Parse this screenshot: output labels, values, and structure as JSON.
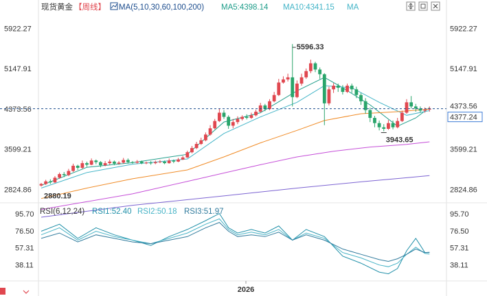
{
  "header": {
    "instrument": "现货黄金",
    "period": "【周线】",
    "ma_params": "MA(5,10,30,60,100,200)",
    "ma5": "MA5:4398.14",
    "ma10": "MA10:4341.15",
    "ma_more": "MA"
  },
  "rsi_header": {
    "params": "RSI(6,12,24)",
    "rsi1": "RSI1:52.40",
    "rsi2": "RSI2:50.18",
    "rsi3": "RSI3:51.97"
  },
  "toolbar": [
    "expand-icon",
    "square-icon",
    "close-icon"
  ],
  "colors": {
    "up": "#e0474f",
    "down": "#2aa56b",
    "ma5": "#1f9d8a",
    "ma10": "#42b4c7",
    "ma30": "#f08a24",
    "ma60": "#c54dd8",
    "ma100": "#7b62d2",
    "rsi1": "#1f8fa8",
    "rsi2": "#46b3c6",
    "rsi3": "#2f7a9c",
    "refline": "#1a4b8c"
  },
  "chart_data": [
    {
      "type": "candlestick",
      "price_ticks": [
        "5922.27",
        "5147.91",
        "4373.56",
        "3599.21",
        "2824.86"
      ],
      "ylim": [
        2620,
        6230
      ],
      "current_price": "4377.24",
      "current_price_right_label": "4373.56",
      "annotations": {
        "high": "5596.33",
        "low": "3943.65",
        "start_low": "2880.19"
      },
      "x_label": "2026",
      "candles": [
        [
          2900,
          2930,
          2880,
          2950
        ],
        [
          2930,
          2980,
          2910,
          3010
        ],
        [
          2980,
          2960,
          2930,
          3020
        ],
        [
          2960,
          3050,
          2950,
          3080
        ],
        [
          3050,
          3120,
          3030,
          3150
        ],
        [
          3120,
          3100,
          3060,
          3160
        ],
        [
          3100,
          3180,
          3080,
          3220
        ],
        [
          3180,
          3280,
          3160,
          3320
        ],
        [
          3280,
          3240,
          3200,
          3300
        ],
        [
          3240,
          3330,
          3220,
          3380
        ],
        [
          3330,
          3300,
          3260,
          3360
        ],
        [
          3300,
          3380,
          3290,
          3420
        ],
        [
          3380,
          3350,
          3310,
          3400
        ],
        [
          3350,
          3290,
          3250,
          3370
        ],
        [
          3290,
          3330,
          3270,
          3370
        ],
        [
          3330,
          3360,
          3300,
          3400
        ],
        [
          3360,
          3320,
          3290,
          3380
        ],
        [
          3320,
          3340,
          3300,
          3370
        ],
        [
          3340,
          3390,
          3320,
          3430
        ],
        [
          3390,
          3350,
          3320,
          3420
        ],
        [
          3350,
          3340,
          3320,
          3370
        ],
        [
          3340,
          3360,
          3320,
          3390
        ],
        [
          3360,
          3330,
          3310,
          3380
        ],
        [
          3330,
          3340,
          3310,
          3360
        ],
        [
          3340,
          3330,
          3300,
          3370
        ],
        [
          3330,
          3350,
          3310,
          3380
        ],
        [
          3350,
          3360,
          3330,
          3390
        ],
        [
          3360,
          3330,
          3310,
          3380
        ],
        [
          3330,
          3380,
          3320,
          3420
        ],
        [
          3380,
          3360,
          3330,
          3400
        ],
        [
          3360,
          3400,
          3350,
          3430
        ],
        [
          3400,
          3440,
          3390,
          3470
        ],
        [
          3440,
          3540,
          3430,
          3570
        ],
        [
          3540,
          3620,
          3520,
          3660
        ],
        [
          3620,
          3700,
          3600,
          3740
        ],
        [
          3700,
          3770,
          3680,
          3820
        ],
        [
          3770,
          3880,
          3750,
          3920
        ],
        [
          3880,
          4000,
          3860,
          4060
        ],
        [
          4000,
          4140,
          3980,
          4180
        ],
        [
          4140,
          4300,
          4120,
          4380
        ],
        [
          4300,
          4220,
          4180,
          4350
        ],
        [
          4220,
          4050,
          3990,
          4250
        ],
        [
          4050,
          4120,
          4000,
          4180
        ],
        [
          4120,
          4180,
          4080,
          4230
        ],
        [
          4180,
          4220,
          4150,
          4250
        ],
        [
          4220,
          4200,
          4170,
          4270
        ],
        [
          4200,
          4250,
          4180,
          4300
        ],
        [
          4250,
          4320,
          4230,
          4360
        ],
        [
          4320,
          4440,
          4300,
          4490
        ],
        [
          4440,
          4370,
          4330,
          4470
        ],
        [
          4370,
          4520,
          4350,
          4560
        ],
        [
          4520,
          4640,
          4500,
          4700
        ],
        [
          4640,
          4880,
          4620,
          4950
        ],
        [
          4880,
          4940,
          4860,
          5000
        ],
        [
          4940,
          4980,
          4900,
          5050
        ],
        [
          4980,
          4600,
          4420,
          5620
        ],
        [
          4600,
          4860,
          4580,
          4920
        ],
        [
          4860,
          4980,
          4820,
          5050
        ],
        [
          4980,
          5100,
          4950,
          5150
        ],
        [
          5100,
          5250,
          5060,
          5320
        ],
        [
          5250,
          5130,
          5080,
          5280
        ],
        [
          5130,
          5040,
          4950,
          5170
        ],
        [
          5040,
          4480,
          4060,
          5060
        ],
        [
          4480,
          4750,
          4440,
          4800
        ],
        [
          4750,
          4820,
          4680,
          4870
        ],
        [
          4820,
          4780,
          4700,
          4860
        ],
        [
          4780,
          4700,
          4650,
          4830
        ],
        [
          4700,
          4820,
          4680,
          4860
        ],
        [
          4820,
          4750,
          4680,
          4860
        ],
        [
          4750,
          4640,
          4580,
          4800
        ],
        [
          4640,
          4520,
          4450,
          4680
        ],
        [
          4520,
          4350,
          4280,
          4580
        ],
        [
          4350,
          4200,
          4120,
          4400
        ],
        [
          4200,
          4100,
          4020,
          4240
        ],
        [
          4100,
          4020,
          3960,
          4150
        ],
        [
          4020,
          3990,
          3943,
          4080
        ],
        [
          3990,
          4100,
          3970,
          4160
        ],
        [
          4100,
          4020,
          3980,
          4150
        ],
        [
          4020,
          4140,
          4000,
          4200
        ],
        [
          4140,
          4300,
          4120,
          4340
        ],
        [
          4300,
          4500,
          4280,
          4560
        ],
        [
          4500,
          4420,
          4380,
          4620
        ],
        [
          4420,
          4380,
          4320,
          4470
        ],
        [
          4380,
          4340,
          4300,
          4420
        ],
        [
          4340,
          4360,
          4300,
          4400
        ],
        [
          4360,
          4377,
          4320,
          4420
        ]
      ],
      "ma_lines": [
        {
          "name": "MA5",
          "values": [
            [
              0,
              2900
            ],
            [
              10,
              3250
            ],
            [
              20,
              3340
            ],
            [
              32,
              3500
            ],
            [
              40,
              4120
            ],
            [
              48,
              4300
            ],
            [
              56,
              4720
            ],
            [
              62,
              4980
            ],
            [
              66,
              4780
            ],
            [
              72,
              4450
            ],
            [
              78,
              4040
            ],
            [
              82,
              4200
            ],
            [
              85,
              4398
            ]
          ]
        },
        {
          "name": "MA10",
          "values": [
            [
              0,
              2850
            ],
            [
              10,
              3150
            ],
            [
              20,
              3310
            ],
            [
              32,
              3410
            ],
            [
              40,
              3900
            ],
            [
              48,
              4220
            ],
            [
              56,
              4500
            ],
            [
              62,
              4820
            ],
            [
              68,
              4780
            ],
            [
              74,
              4500
            ],
            [
              80,
              4250
            ],
            [
              85,
              4341
            ]
          ]
        },
        {
          "name": "MA30",
          "values": [
            [
              0,
              2650
            ],
            [
              10,
              2850
            ],
            [
              20,
              3030
            ],
            [
              32,
              3200
            ],
            [
              40,
              3450
            ],
            [
              48,
              3720
            ],
            [
              56,
              3960
            ],
            [
              62,
              4150
            ],
            [
              70,
              4280
            ],
            [
              78,
              4320
            ],
            [
              85,
              4370
            ]
          ]
        },
        {
          "name": "MA60",
          "values": [
            [
              0,
              2440
            ],
            [
              20,
              2740
            ],
            [
              32,
              2980
            ],
            [
              40,
              3140
            ],
            [
              48,
              3300
            ],
            [
              56,
              3450
            ],
            [
              64,
              3560
            ],
            [
              72,
              3640
            ],
            [
              80,
              3690
            ],
            [
              85,
              3740
            ]
          ]
        },
        {
          "name": "MA100",
          "values": [
            [
              0,
              2290
            ],
            [
              20,
              2520
            ],
            [
              40,
              2700
            ],
            [
              56,
              2850
            ],
            [
              70,
              2970
            ],
            [
              80,
              3050
            ],
            [
              85,
              3090
            ]
          ]
        }
      ]
    },
    {
      "type": "line",
      "title": "RSI(6,12,24)",
      "y_ticks": [
        "95.70",
        "76.50",
        "57.31",
        "38.11"
      ],
      "ylim": [
        20,
        105
      ],
      "series": [
        {
          "name": "RSI1",
          "values": [
            [
              0,
              76
            ],
            [
              4,
              84
            ],
            [
              8,
              68
            ],
            [
              12,
              80
            ],
            [
              16,
              72
            ],
            [
              20,
              66
            ],
            [
              24,
              60
            ],
            [
              28,
              70
            ],
            [
              32,
              78
            ],
            [
              36,
              88
            ],
            [
              39,
              96
            ],
            [
              41,
              80
            ],
            [
              43,
              74
            ],
            [
              46,
              78
            ],
            [
              49,
              74
            ],
            [
              52,
              82
            ],
            [
              55,
              66
            ],
            [
              58,
              78
            ],
            [
              62,
              70
            ],
            [
              66,
              48
            ],
            [
              70,
              40
            ],
            [
              74,
              30
            ],
            [
              76,
              28
            ],
            [
              78,
              34
            ],
            [
              80,
              54
            ],
            [
              82,
              68
            ],
            [
              83,
              60
            ],
            [
              84,
              52
            ],
            [
              85,
              52.4
            ]
          ]
        },
        {
          "name": "RSI2",
          "values": [
            [
              0,
              72
            ],
            [
              4,
              80
            ],
            [
              8,
              66
            ],
            [
              12,
              76
            ],
            [
              16,
              70
            ],
            [
              20,
              66
            ],
            [
              24,
              62
            ],
            [
              28,
              68
            ],
            [
              32,
              74
            ],
            [
              36,
              84
            ],
            [
              39,
              90
            ],
            [
              41,
              78
            ],
            [
              43,
              72
            ],
            [
              46,
              75
            ],
            [
              49,
              72
            ],
            [
              52,
              78
            ],
            [
              55,
              66
            ],
            [
              58,
              74
            ],
            [
              62,
              68
            ],
            [
              66,
              52
            ],
            [
              70,
              46
            ],
            [
              74,
              38
            ],
            [
              76,
              36
            ],
            [
              78,
              40
            ],
            [
              80,
              50
            ],
            [
              82,
              58
            ],
            [
              84,
              51
            ],
            [
              85,
              50.18
            ]
          ]
        },
        {
          "name": "RSI3",
          "values": [
            [
              0,
              68
            ],
            [
              4,
              74
            ],
            [
              8,
              64
            ],
            [
              12,
              72
            ],
            [
              16,
              68
            ],
            [
              20,
              64
            ],
            [
              24,
              62
            ],
            [
              28,
              66
            ],
            [
              32,
              70
            ],
            [
              36,
              80
            ],
            [
              39,
              86
            ],
            [
              41,
              76
            ],
            [
              43,
              70
            ],
            [
              46,
              72
            ],
            [
              49,
              70
            ],
            [
              52,
              75
            ],
            [
              55,
              66
            ],
            [
              58,
              72
            ],
            [
              62,
              66
            ],
            [
              66,
              56
            ],
            [
              70,
              50
            ],
            [
              74,
              44
            ],
            [
              76,
              42
            ],
            [
              78,
              45
            ],
            [
              80,
              50
            ],
            [
              82,
              56
            ],
            [
              84,
              52
            ],
            [
              85,
              51.97
            ]
          ]
        }
      ]
    }
  ]
}
